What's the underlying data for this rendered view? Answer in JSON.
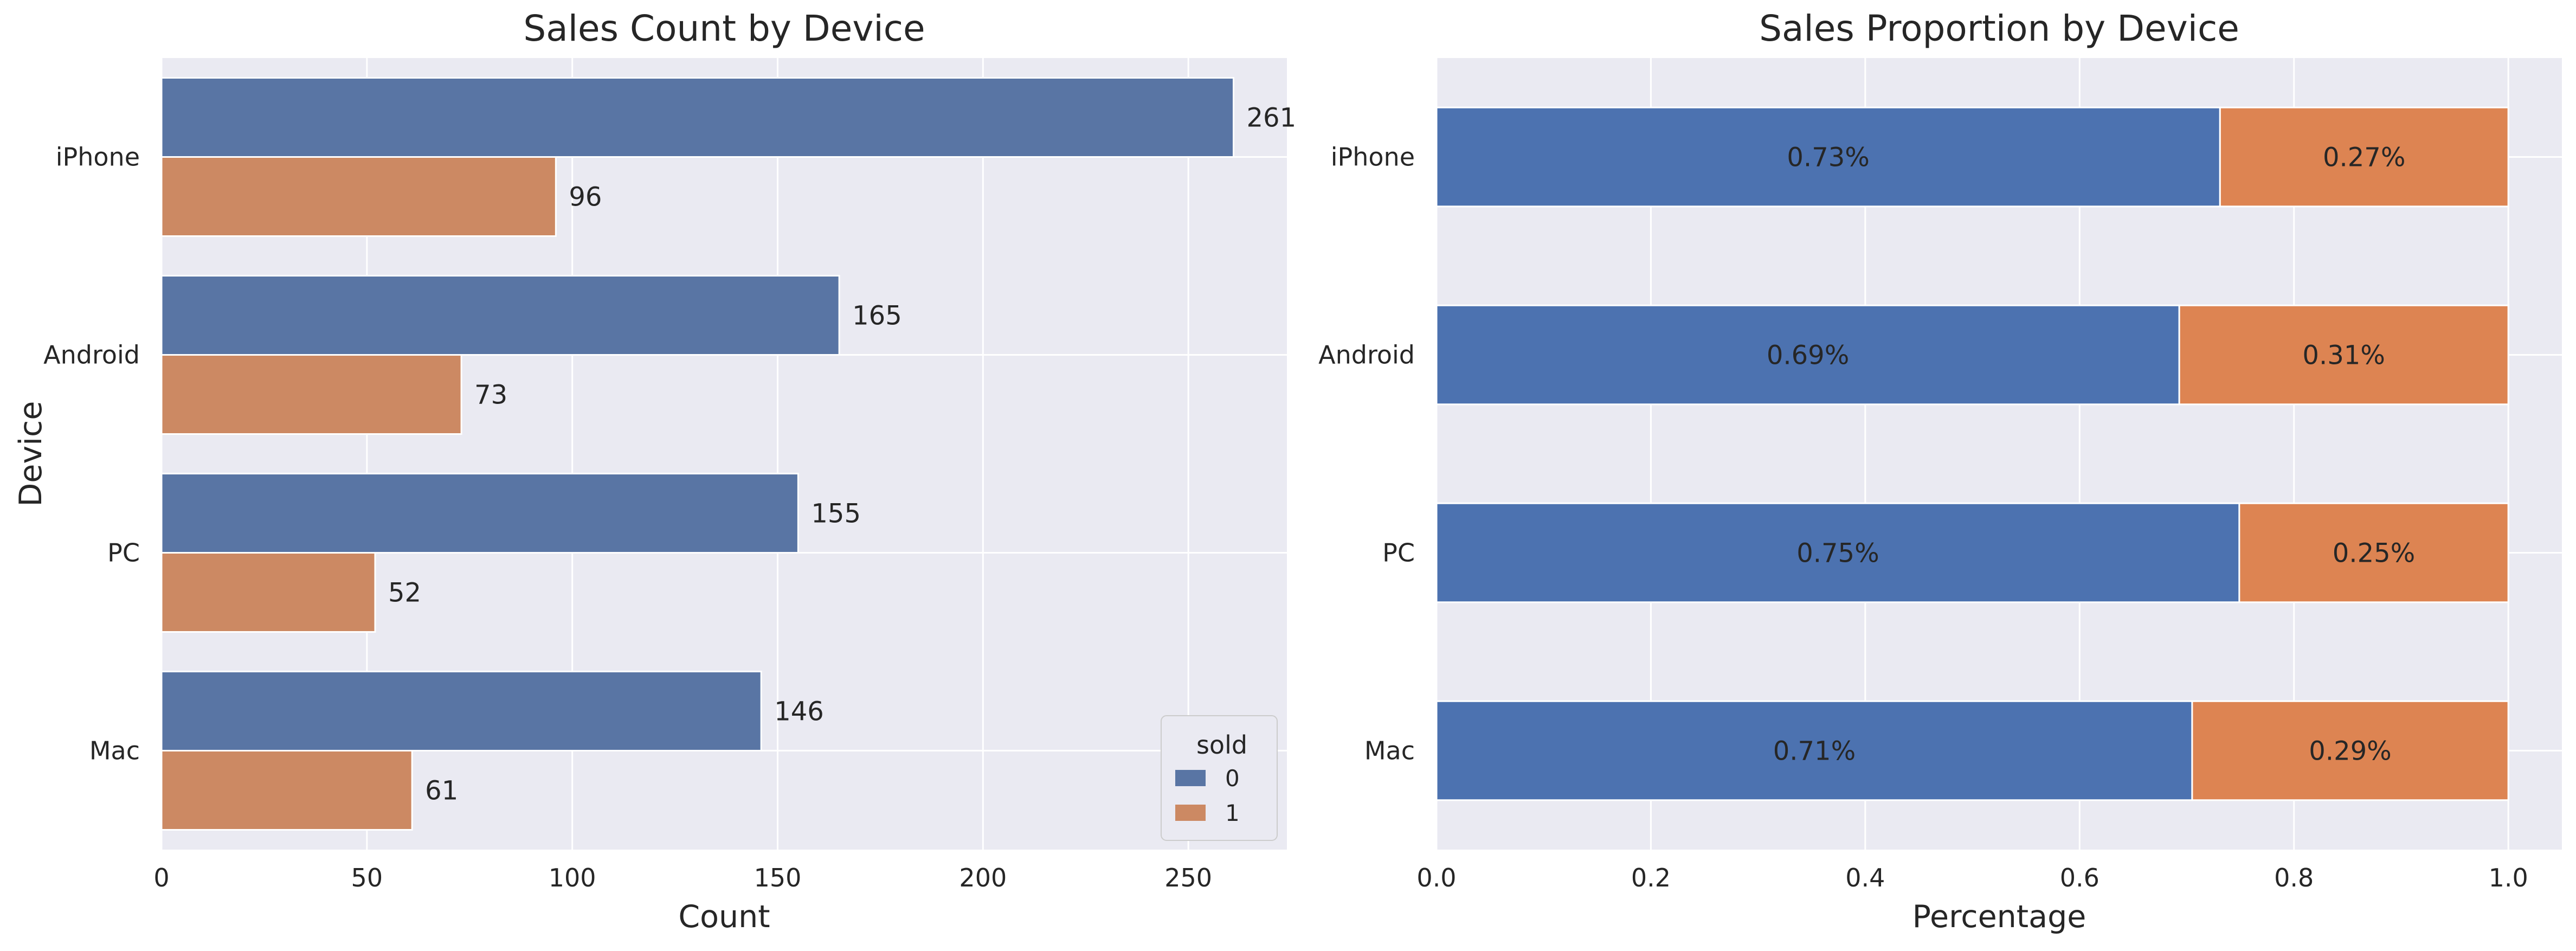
{
  "chart_data": [
    {
      "type": "bar",
      "orientation": "horizontal",
      "title": "Sales Count by Device",
      "xlabel": "Count",
      "ylabel": "Device",
      "categories": [
        "iPhone",
        "Android",
        "PC",
        "Mac"
      ],
      "series": [
        {
          "name": "0",
          "values": [
            261,
            165,
            155,
            146
          ],
          "color": "#5975a4"
        },
        {
          "name": "1",
          "values": [
            96,
            73,
            52,
            61
          ],
          "color": "#cc8963"
        }
      ],
      "data_labels": {
        "0": [
          "261",
          "165",
          "155",
          "146"
        ],
        "1": [
          "96",
          "73",
          "52",
          "61"
        ]
      },
      "xlim": [
        0,
        274
      ],
      "xticks": [
        0,
        50,
        100,
        150,
        200,
        250
      ],
      "xtick_labels": [
        "0",
        "50",
        "100",
        "150",
        "200",
        "250"
      ],
      "grid": true,
      "legend": {
        "title": "sold",
        "position": "lower right"
      }
    },
    {
      "type": "bar",
      "orientation": "horizontal",
      "stacked": true,
      "title": "Sales Proportion by Device",
      "xlabel": "Percentage",
      "ylabel": "",
      "categories": [
        "iPhone",
        "Android",
        "PC",
        "Mac"
      ],
      "series": [
        {
          "name": "0",
          "values": [
            0.731,
            0.693,
            0.749,
            0.705
          ],
          "color": "#4c72b0"
        },
        {
          "name": "1",
          "values": [
            0.269,
            0.307,
            0.251,
            0.295
          ],
          "color": "#dd8452"
        }
      ],
      "data_labels": {
        "0": [
          "0.73%",
          "0.69%",
          "0.75%",
          "0.71%"
        ],
        "1": [
          "0.27%",
          "0.31%",
          "0.25%",
          "0.29%"
        ]
      },
      "xlim": [
        0,
        1.05
      ],
      "xticks": [
        0,
        0.2,
        0.4,
        0.6,
        0.8,
        1.0
      ],
      "xtick_labels": [
        "0.0",
        "0.2",
        "0.4",
        "0.6",
        "0.8",
        "1.0"
      ],
      "grid": true
    }
  ]
}
